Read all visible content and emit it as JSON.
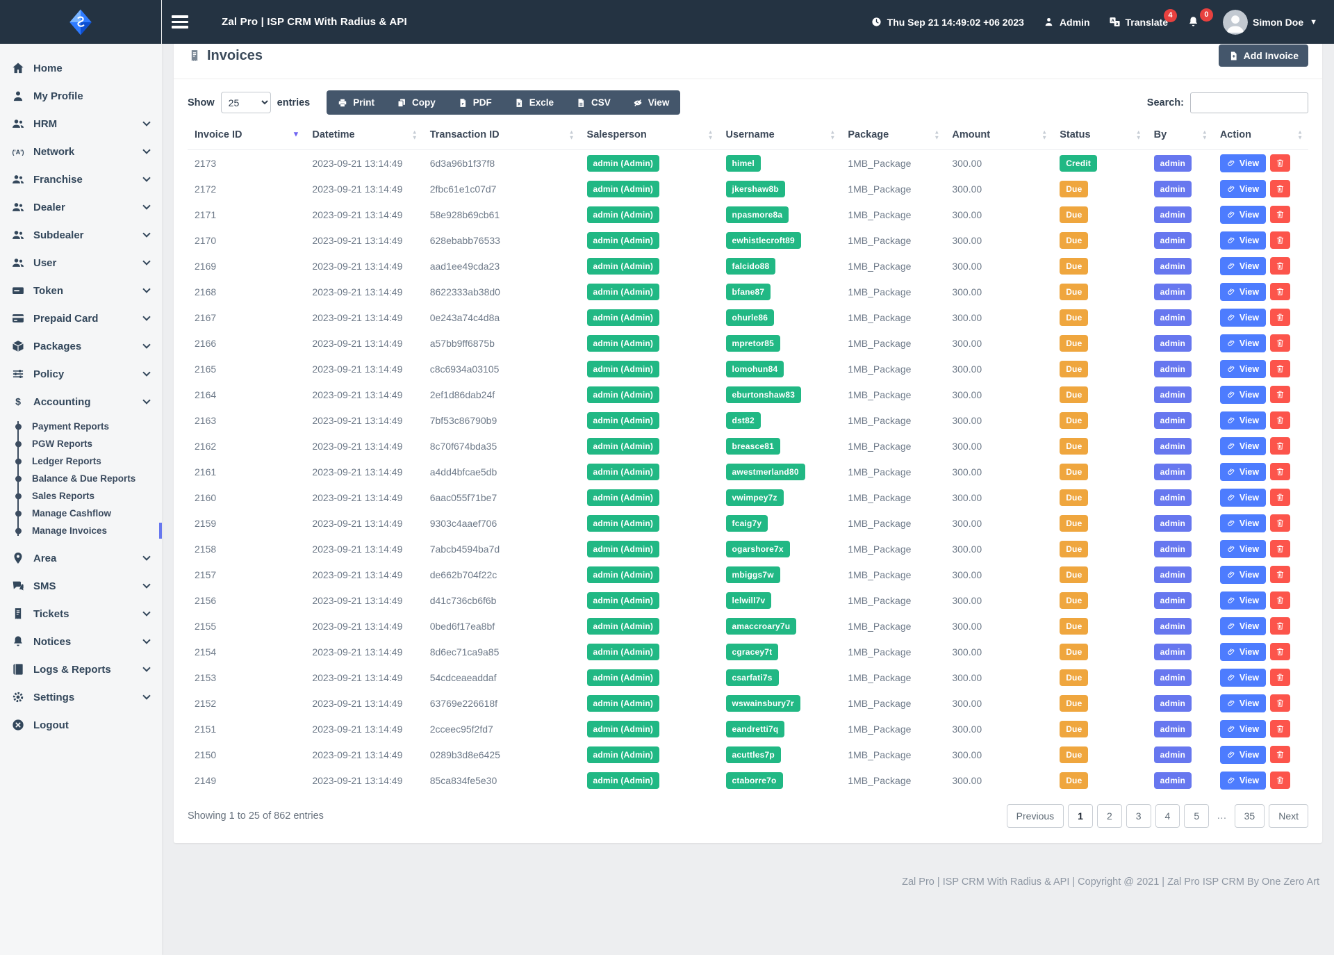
{
  "navbar": {
    "brand_title": "Zal Pro | ISP CRM With Radius & API",
    "datetime": "Thu Sep 21 14:49:02 +06 2023",
    "admin_label": "Admin",
    "translate_label": "Translate",
    "translate_badge": "4",
    "notification_badge": "0",
    "user_name": "Simon Doe"
  },
  "sidebar": {
    "items": [
      {
        "label": "Home",
        "icon": "home",
        "chevron": false
      },
      {
        "label": "My Profile",
        "icon": "user",
        "chevron": false
      },
      {
        "label": "HRM",
        "icon": "users",
        "chevron": true
      },
      {
        "label": "Network",
        "icon": "broadcast",
        "chevron": true
      },
      {
        "label": "Franchise",
        "icon": "users",
        "chevron": true
      },
      {
        "label": "Dealer",
        "icon": "users",
        "chevron": true
      },
      {
        "label": "Subdealer",
        "icon": "users",
        "chevron": true
      },
      {
        "label": "User",
        "icon": "users",
        "chevron": true
      },
      {
        "label": "Token",
        "icon": "token",
        "chevron": true
      },
      {
        "label": "Prepaid Card",
        "icon": "credit-card",
        "chevron": true
      },
      {
        "label": "Packages",
        "icon": "box",
        "chevron": true
      },
      {
        "label": "Policy",
        "icon": "sliders",
        "chevron": true
      },
      {
        "label": "Accounting",
        "icon": "dollar",
        "chevron": true,
        "expanded": true,
        "children": [
          "Payment Reports",
          "PGW Reports",
          "Ledger Reports",
          "Balance & Due Reports",
          "Sales Reports",
          "Manage Cashflow",
          "Manage Invoices"
        ],
        "active_child": "Manage Invoices"
      },
      {
        "label": "Area",
        "icon": "map-pin",
        "chevron": true
      },
      {
        "label": "SMS",
        "icon": "chat",
        "chevron": true
      },
      {
        "label": "Tickets",
        "icon": "ticket",
        "chevron": true
      },
      {
        "label": "Notices",
        "icon": "bell",
        "chevron": true
      },
      {
        "label": "Logs & Reports",
        "icon": "book",
        "chevron": true
      },
      {
        "label": "Settings",
        "icon": "gear",
        "chevron": true
      },
      {
        "label": "Logout",
        "icon": "logout",
        "chevron": false
      }
    ]
  },
  "page": {
    "title": "Invoices",
    "add_button": "Add Invoice",
    "show_label": "Show",
    "page_length": "25",
    "entries_label": "entries",
    "search_label": "Search:",
    "export_buttons": [
      {
        "label": "Print",
        "icon": "print"
      },
      {
        "label": "Copy",
        "icon": "copy"
      },
      {
        "label": "PDF",
        "icon": "file-pdf"
      },
      {
        "label": "Excle",
        "icon": "file-excel"
      },
      {
        "label": "CSV",
        "icon": "file-csv"
      },
      {
        "label": "View",
        "icon": "eye-slash"
      }
    ]
  },
  "table": {
    "columns": [
      "Invoice ID",
      "Datetime",
      "Transaction ID",
      "Salesperson",
      "Username",
      "Package",
      "Amount",
      "Status",
      "By",
      "Action"
    ],
    "sort": {
      "column": "Invoice ID",
      "dir": "desc"
    },
    "view_label": "View",
    "rows": [
      {
        "id": "2173",
        "datetime": "2023-09-21 13:14:49",
        "txn": "6d3a96b1f37f8",
        "salesperson": "admin (Admin)",
        "username": "himel",
        "package": "1MB_Package",
        "amount": "300.00",
        "status": "Credit",
        "by": "admin"
      },
      {
        "id": "2172",
        "datetime": "2023-09-21 13:14:49",
        "txn": "2fbc61e1c07d7",
        "salesperson": "admin (Admin)",
        "username": "jkershaw8b",
        "package": "1MB_Package",
        "amount": "300.00",
        "status": "Due",
        "by": "admin"
      },
      {
        "id": "2171",
        "datetime": "2023-09-21 13:14:49",
        "txn": "58e928b69cb61",
        "salesperson": "admin (Admin)",
        "username": "npasmore8a",
        "package": "1MB_Package",
        "amount": "300.00",
        "status": "Due",
        "by": "admin"
      },
      {
        "id": "2170",
        "datetime": "2023-09-21 13:14:49",
        "txn": "628ebabb76533",
        "salesperson": "admin (Admin)",
        "username": "ewhistlecroft89",
        "package": "1MB_Package",
        "amount": "300.00",
        "status": "Due",
        "by": "admin"
      },
      {
        "id": "2169",
        "datetime": "2023-09-21 13:14:49",
        "txn": "aad1ee49cda23",
        "salesperson": "admin (Admin)",
        "username": "falcido88",
        "package": "1MB_Package",
        "amount": "300.00",
        "status": "Due",
        "by": "admin"
      },
      {
        "id": "2168",
        "datetime": "2023-09-21 13:14:49",
        "txn": "8622333ab38d0",
        "salesperson": "admin (Admin)",
        "username": "bfane87",
        "package": "1MB_Package",
        "amount": "300.00",
        "status": "Due",
        "by": "admin"
      },
      {
        "id": "2167",
        "datetime": "2023-09-21 13:14:49",
        "txn": "0e243a74c4d8a",
        "salesperson": "admin (Admin)",
        "username": "ohurle86",
        "package": "1MB_Package",
        "amount": "300.00",
        "status": "Due",
        "by": "admin"
      },
      {
        "id": "2166",
        "datetime": "2023-09-21 13:14:49",
        "txn": "a57bb9ff6875b",
        "salesperson": "admin (Admin)",
        "username": "mpretor85",
        "package": "1MB_Package",
        "amount": "300.00",
        "status": "Due",
        "by": "admin"
      },
      {
        "id": "2165",
        "datetime": "2023-09-21 13:14:49",
        "txn": "c8c6934a03105",
        "salesperson": "admin (Admin)",
        "username": "lomohun84",
        "package": "1MB_Package",
        "amount": "300.00",
        "status": "Due",
        "by": "admin"
      },
      {
        "id": "2164",
        "datetime": "2023-09-21 13:14:49",
        "txn": "2ef1d86dab24f",
        "salesperson": "admin (Admin)",
        "username": "eburtonshaw83",
        "package": "1MB_Package",
        "amount": "300.00",
        "status": "Due",
        "by": "admin"
      },
      {
        "id": "2163",
        "datetime": "2023-09-21 13:14:49",
        "txn": "7bf53c86790b9",
        "salesperson": "admin (Admin)",
        "username": "dst82",
        "package": "1MB_Package",
        "amount": "300.00",
        "status": "Due",
        "by": "admin"
      },
      {
        "id": "2162",
        "datetime": "2023-09-21 13:14:49",
        "txn": "8c70f674bda35",
        "salesperson": "admin (Admin)",
        "username": "breasce81",
        "package": "1MB_Package",
        "amount": "300.00",
        "status": "Due",
        "by": "admin"
      },
      {
        "id": "2161",
        "datetime": "2023-09-21 13:14:49",
        "txn": "a4dd4bfcae5db",
        "salesperson": "admin (Admin)",
        "username": "awestmerland80",
        "package": "1MB_Package",
        "amount": "300.00",
        "status": "Due",
        "by": "admin"
      },
      {
        "id": "2160",
        "datetime": "2023-09-21 13:14:49",
        "txn": "6aac055f71be7",
        "salesperson": "admin (Admin)",
        "username": "vwimpey7z",
        "package": "1MB_Package",
        "amount": "300.00",
        "status": "Due",
        "by": "admin"
      },
      {
        "id": "2159",
        "datetime": "2023-09-21 13:14:49",
        "txn": "9303c4aaef706",
        "salesperson": "admin (Admin)",
        "username": "fcaig7y",
        "package": "1MB_Package",
        "amount": "300.00",
        "status": "Due",
        "by": "admin"
      },
      {
        "id": "2158",
        "datetime": "2023-09-21 13:14:49",
        "txn": "7abcb4594ba7d",
        "salesperson": "admin (Admin)",
        "username": "ogarshore7x",
        "package": "1MB_Package",
        "amount": "300.00",
        "status": "Due",
        "by": "admin"
      },
      {
        "id": "2157",
        "datetime": "2023-09-21 13:14:49",
        "txn": "de662b704f22c",
        "salesperson": "admin (Admin)",
        "username": "mbiggs7w",
        "package": "1MB_Package",
        "amount": "300.00",
        "status": "Due",
        "by": "admin"
      },
      {
        "id": "2156",
        "datetime": "2023-09-21 13:14:49",
        "txn": "d41c736cb6f6b",
        "salesperson": "admin (Admin)",
        "username": "lelwill7v",
        "package": "1MB_Package",
        "amount": "300.00",
        "status": "Due",
        "by": "admin"
      },
      {
        "id": "2155",
        "datetime": "2023-09-21 13:14:49",
        "txn": "0bed6f17ea8bf",
        "salesperson": "admin (Admin)",
        "username": "amaccroary7u",
        "package": "1MB_Package",
        "amount": "300.00",
        "status": "Due",
        "by": "admin"
      },
      {
        "id": "2154",
        "datetime": "2023-09-21 13:14:49",
        "txn": "8d6ec71ca9a85",
        "salesperson": "admin (Admin)",
        "username": "cgracey7t",
        "package": "1MB_Package",
        "amount": "300.00",
        "status": "Due",
        "by": "admin"
      },
      {
        "id": "2153",
        "datetime": "2023-09-21 13:14:49",
        "txn": "54cdceaeaddaf",
        "salesperson": "admin (Admin)",
        "username": "csarfati7s",
        "package": "1MB_Package",
        "amount": "300.00",
        "status": "Due",
        "by": "admin"
      },
      {
        "id": "2152",
        "datetime": "2023-09-21 13:14:49",
        "txn": "63769e226618f",
        "salesperson": "admin (Admin)",
        "username": "wswainsbury7r",
        "package": "1MB_Package",
        "amount": "300.00",
        "status": "Due",
        "by": "admin"
      },
      {
        "id": "2151",
        "datetime": "2023-09-21 13:14:49",
        "txn": "2cceec95f2fd7",
        "salesperson": "admin (Admin)",
        "username": "eandretti7q",
        "package": "1MB_Package",
        "amount": "300.00",
        "status": "Due",
        "by": "admin"
      },
      {
        "id": "2150",
        "datetime": "2023-09-21 13:14:49",
        "txn": "0289b3d8e6425",
        "salesperson": "admin (Admin)",
        "username": "acuttles7p",
        "package": "1MB_Package",
        "amount": "300.00",
        "status": "Due",
        "by": "admin"
      },
      {
        "id": "2149",
        "datetime": "2023-09-21 13:14:49",
        "txn": "85ca834fe5e30",
        "salesperson": "admin (Admin)",
        "username": "ctaborre7o",
        "package": "1MB_Package",
        "amount": "300.00",
        "status": "Due",
        "by": "admin"
      }
    ]
  },
  "footer_info": "Showing 1 to 25 of 862 entries",
  "pagination": {
    "items": [
      {
        "label": "Previous",
        "kind": "prev"
      },
      {
        "label": "1",
        "kind": "page",
        "active": true
      },
      {
        "label": "2",
        "kind": "page"
      },
      {
        "label": "3",
        "kind": "page"
      },
      {
        "label": "4",
        "kind": "page"
      },
      {
        "label": "5",
        "kind": "page"
      },
      {
        "label": "…",
        "kind": "ellipsis"
      },
      {
        "label": "35",
        "kind": "page"
      },
      {
        "label": "Next",
        "kind": "next"
      }
    ]
  },
  "copyright": "Zal Pro | ISP CRM With Radius & API | Copyright @ 2021 | Zal Pro ISP CRM By One Zero Art",
  "colors": {
    "navbar": "#243342",
    "dark_button": "#44566b",
    "success_badge": "#21b884",
    "due_badge": "#efa63e",
    "by_badge": "#6777ef",
    "view_button": "#4d7cfe",
    "delete_button": "#fc544b",
    "notification_badge": "#e8413f",
    "active_submenu_bar": "#6777ef"
  }
}
